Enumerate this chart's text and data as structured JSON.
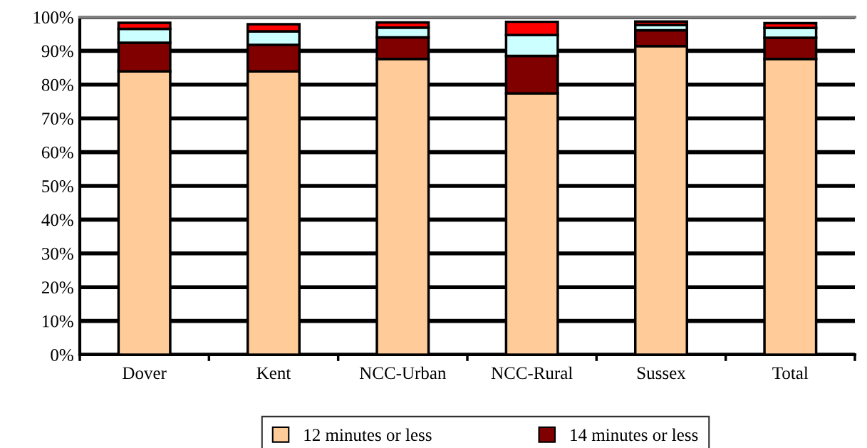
{
  "chart_data": {
    "type": "bar",
    "stacked": true,
    "categories": [
      "Dover",
      "Kent",
      "NCC-Urban",
      "NCC-Rural",
      "Sussex",
      "Total"
    ],
    "series": [
      {
        "name": "12 minutes or less",
        "color": "#ffcc99",
        "values": [
          83.9,
          83.9,
          87.6,
          77.4,
          91.4,
          87.6
        ]
      },
      {
        "name": "14 minutes or less",
        "color": "#800000",
        "values": [
          8.5,
          7.9,
          6.4,
          11.1,
          4.7,
          6.3
        ]
      },
      {
        "color": "#ccffff",
        "values": [
          4.1,
          4.0,
          2.9,
          6.2,
          1.6,
          2.9
        ]
      },
      {
        "color": "#ff0000",
        "values": [
          1.8,
          2.1,
          1.5,
          3.9,
          1.0,
          1.4
        ]
      }
    ],
    "ylim": [
      0,
      100
    ],
    "yticks": [
      {
        "value": 0,
        "label": "0%"
      },
      {
        "value": 10,
        "label": "10%"
      },
      {
        "value": 20,
        "label": "20%"
      },
      {
        "value": 30,
        "label": "30%"
      },
      {
        "value": 40,
        "label": "40%"
      },
      {
        "value": 50,
        "label": "50%"
      },
      {
        "value": 60,
        "label": "60%"
      },
      {
        "value": 70,
        "label": "70%"
      },
      {
        "value": 80,
        "label": "80%"
      },
      {
        "value": 90,
        "label": "90%"
      },
      {
        "value": 100,
        "label": "100%"
      }
    ],
    "grid": "y",
    "legend": "bottom"
  }
}
